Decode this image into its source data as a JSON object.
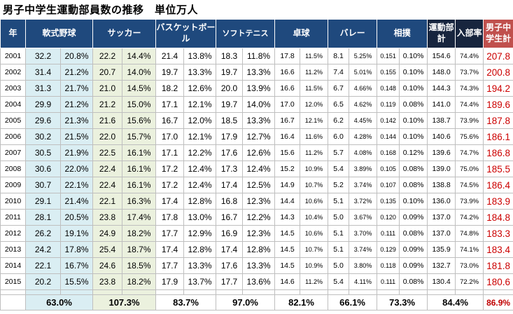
{
  "title": "男子中学生運動部員数の推移　単位万人",
  "colors": {
    "header_navy": "#1F497D",
    "header_dark_navy": "#17253E",
    "header_red": "#C0504D",
    "column_fill_blue": "#DAEEF3",
    "column_fill_green": "#EBF1DE",
    "value_red": "#CC0000",
    "gridline_gray": "#BFBFBF"
  },
  "chart_data": {
    "type": "table",
    "title": "男子中学生運動部員数の推移",
    "unit_note": "単位万人",
    "header": {
      "year": "年",
      "sports": [
        "軟式野球",
        "サッカー",
        "バスケットボール",
        "ソフトテニス",
        "卓球",
        "バレー",
        "相撲"
      ],
      "club_total": "運動部計",
      "join_rate": "入部率",
      "student_total": "男子中学生計"
    },
    "rows": [
      {
        "cells": [
          "2001",
          "32.2",
          "20.8%",
          "22.2",
          "14.4%",
          "21.4",
          "13.8%",
          "18.3",
          "11.8%",
          "17.8",
          "11.5%",
          "8.1",
          "5.25%",
          "0.151",
          "0.10%",
          "154.6",
          "74.4%",
          "207.8"
        ]
      },
      {
        "cells": [
          "2002",
          "31.4",
          "21.2%",
          "20.7",
          "14.0%",
          "19.7",
          "13.3%",
          "19.7",
          "13.3%",
          "16.6",
          "11.2%",
          "7.4",
          "5.01%",
          "0.155",
          "0.10%",
          "148.0",
          "73.7%",
          "200.8"
        ]
      },
      {
        "cells": [
          "2003",
          "31.3",
          "21.7%",
          "21.0",
          "14.5%",
          "18.2",
          "12.6%",
          "20.0",
          "13.9%",
          "16.6",
          "11.5%",
          "6.7",
          "4.66%",
          "0.148",
          "0.10%",
          "144.3",
          "74.3%",
          "194.2"
        ]
      },
      {
        "cells": [
          "2004",
          "29.9",
          "21.2%",
          "21.2",
          "15.0%",
          "17.1",
          "12.1%",
          "19.7",
          "14.0%",
          "17.0",
          "12.0%",
          "6.5",
          "4.62%",
          "0.119",
          "0.08%",
          "141.0",
          "74.4%",
          "189.6"
        ]
      },
      {
        "cells": [
          "2005",
          "29.6",
          "21.3%",
          "21.6",
          "15.6%",
          "16.7",
          "12.0%",
          "18.5",
          "13.3%",
          "16.7",
          "12.1%",
          "6.2",
          "4.45%",
          "0.142",
          "0.10%",
          "138.7",
          "73.9%",
          "187.8"
        ]
      },
      {
        "cells": [
          "2006",
          "30.2",
          "21.5%",
          "22.0",
          "15.7%",
          "17.0",
          "12.1%",
          "17.9",
          "12.7%",
          "16.4",
          "11.6%",
          "6.0",
          "4.28%",
          "0.144",
          "0.10%",
          "140.6",
          "75.6%",
          "186.1"
        ]
      },
      {
        "cells": [
          "2007",
          "30.5",
          "21.9%",
          "22.5",
          "16.1%",
          "17.1",
          "12.2%",
          "17.6",
          "12.6%",
          "15.6",
          "11.2%",
          "5.7",
          "4.08%",
          "0.168",
          "0.12%",
          "139.6",
          "74.7%",
          "186.8"
        ]
      },
      {
        "cells": [
          "2008",
          "30.6",
          "22.0%",
          "22.4",
          "16.1%",
          "17.2",
          "12.4%",
          "17.3",
          "12.4%",
          "15.2",
          "10.9%",
          "5.4",
          "3.89%",
          "0.105",
          "0.08%",
          "139.0",
          "75.0%",
          "185.5"
        ]
      },
      {
        "cells": [
          "2009",
          "30.7",
          "22.1%",
          "22.4",
          "16.1%",
          "17.2",
          "12.4%",
          "17.4",
          "12.5%",
          "14.9",
          "10.7%",
          "5.2",
          "3.74%",
          "0.107",
          "0.08%",
          "138.8",
          "74.5%",
          "186.4"
        ]
      },
      {
        "cells": [
          "2010",
          "29.1",
          "21.4%",
          "22.1",
          "16.3%",
          "17.4",
          "12.8%",
          "16.8",
          "12.3%",
          "14.4",
          "10.6%",
          "5.1",
          "3.72%",
          "0.135",
          "0.10%",
          "136.0",
          "73.9%",
          "183.9"
        ]
      },
      {
        "cells": [
          "2011",
          "28.1",
          "20.5%",
          "23.8",
          "17.4%",
          "17.8",
          "13.0%",
          "16.7",
          "12.2%",
          "14.3",
          "10.4%",
          "5.0",
          "3.67%",
          "0.120",
          "0.09%",
          "137.0",
          "74.2%",
          "184.8"
        ]
      },
      {
        "cells": [
          "2012",
          "26.2",
          "19.1%",
          "24.9",
          "18.2%",
          "17.7",
          "12.9%",
          "16.9",
          "12.3%",
          "14.5",
          "10.6%",
          "5.1",
          "3.70%",
          "0.111",
          "0.08%",
          "137.0",
          "74.8%",
          "183.3"
        ]
      },
      {
        "cells": [
          "2013",
          "24.2",
          "17.8%",
          "25.4",
          "18.7%",
          "17.4",
          "12.8%",
          "17.4",
          "12.8%",
          "14.5",
          "10.7%",
          "5.1",
          "3.74%",
          "0.129",
          "0.09%",
          "135.9",
          "74.1%",
          "183.4"
        ]
      },
      {
        "cells": [
          "2014",
          "22.1",
          "16.7%",
          "24.6",
          "18.5%",
          "17.7",
          "13.3%",
          "17.6",
          "13.3%",
          "14.5",
          "10.9%",
          "5.0",
          "3.80%",
          "0.118",
          "0.09%",
          "132.7",
          "73.0%",
          "181.8"
        ]
      },
      {
        "cells": [
          "2015",
          "20.2",
          "15.5%",
          "23.8",
          "18.2%",
          "17.9",
          "13.7%",
          "17.7",
          "13.6%",
          "14.6",
          "11.2%",
          "5.4",
          "4.11%",
          "0.111",
          "0.08%",
          "130.4",
          "72.2%",
          "180.6"
        ]
      }
    ],
    "summary": [
      "63.0%",
      "107.3%",
      "83.7%",
      "97.0%",
      "82.1%",
      "66.1%",
      "73.3%",
      "84.4%",
      "86.9%"
    ]
  }
}
